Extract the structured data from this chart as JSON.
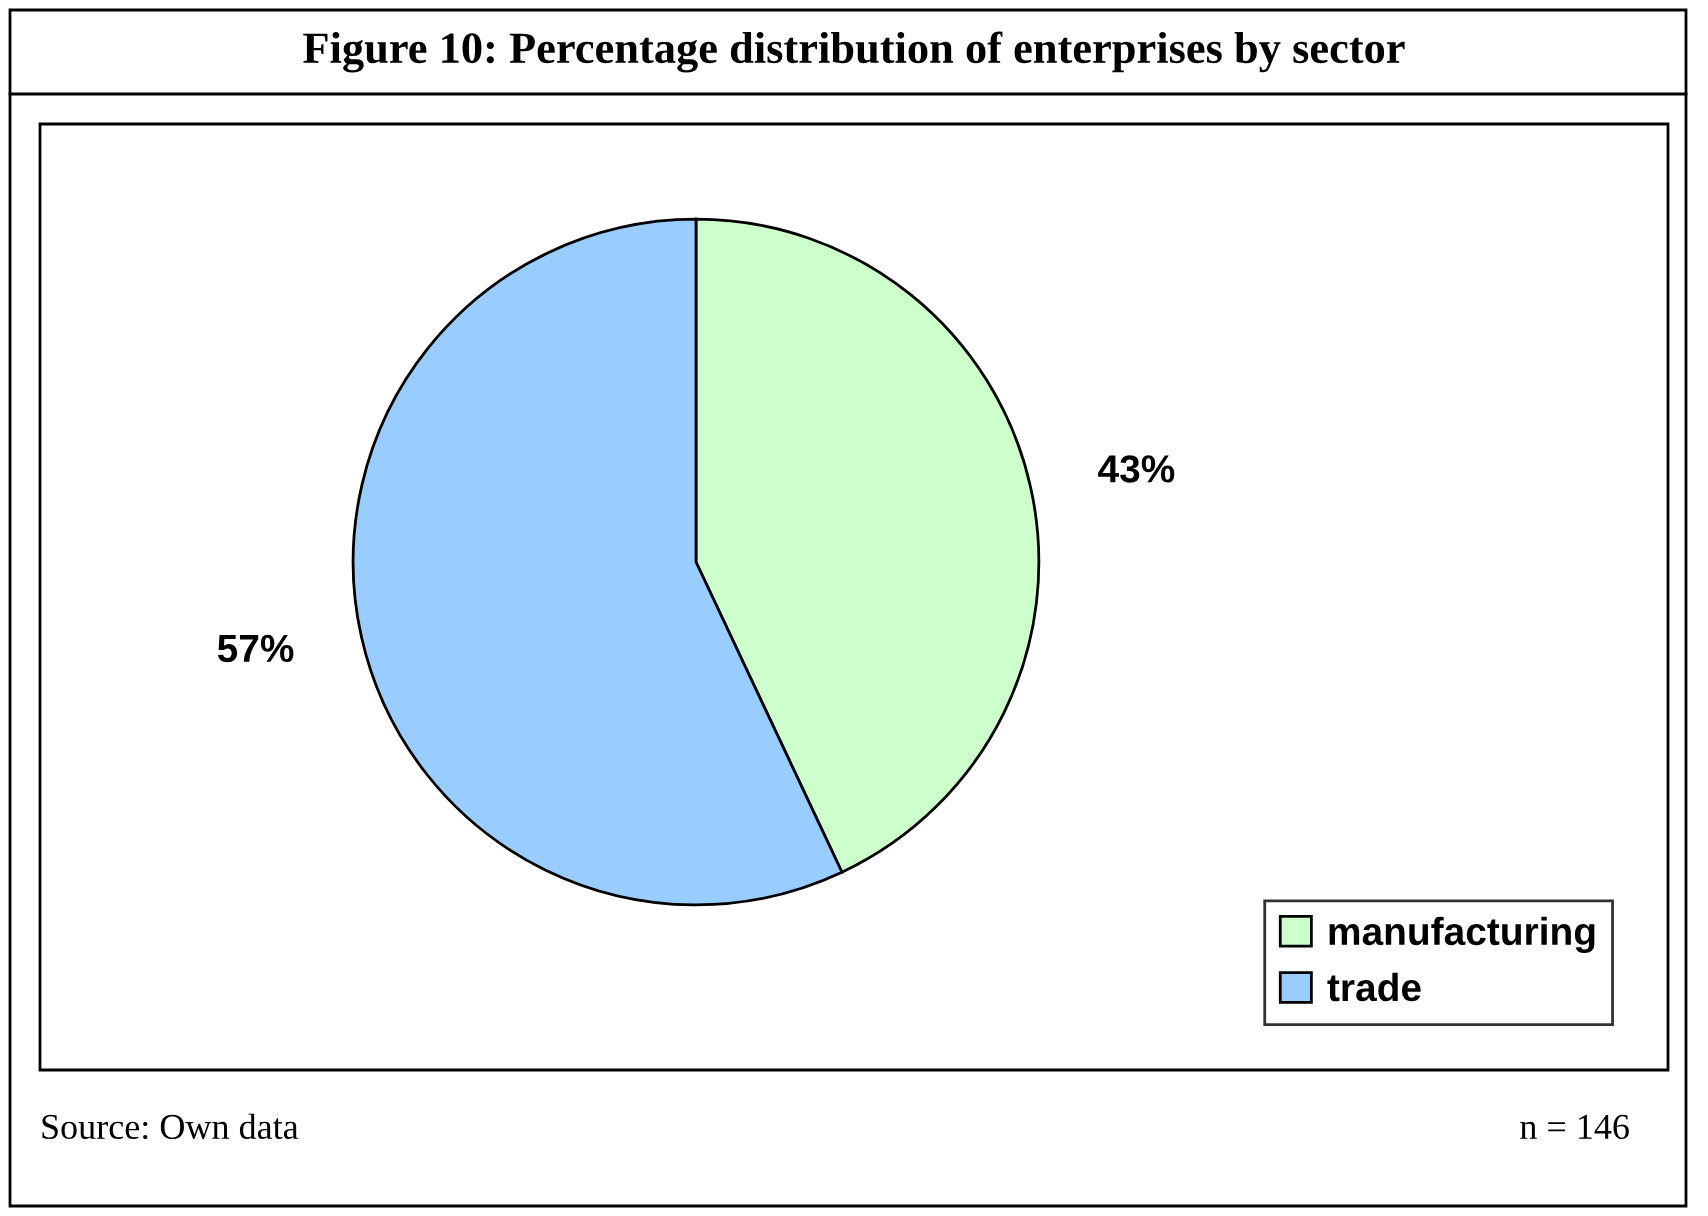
{
  "chart_data": {
    "type": "pie",
    "title": "Figure 10: Percentage distribution of enterprises by sector",
    "categories": [
      "manufacturing",
      "trade"
    ],
    "values": [
      43,
      57
    ],
    "colors": [
      "#ccffcc",
      "#99ccff"
    ],
    "value_labels": [
      "43%",
      "57%"
    ],
    "legend": "bottom right",
    "annotations": [
      "Source: Own data",
      "n = 146"
    ]
  }
}
